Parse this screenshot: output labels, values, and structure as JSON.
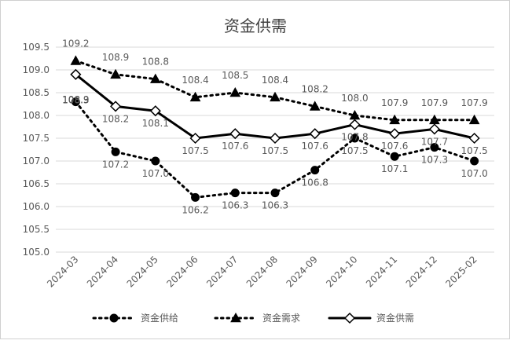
{
  "chart_data": {
    "type": "line",
    "title": "资金供需",
    "xlabel": "",
    "ylabel": "",
    "ylim": [
      105.0,
      109.5
    ],
    "y_ticks": [
      "105.0",
      "105.5",
      "106.0",
      "106.5",
      "107.0",
      "107.5",
      "108.0",
      "108.5",
      "109.0",
      "109.5"
    ],
    "grid": true,
    "legend_position": "bottom",
    "categories": [
      "2024-03",
      "2024-04",
      "2024-05",
      "2024-06",
      "2024-07",
      "2024-08",
      "2024-09",
      "2024-10",
      "2024-11",
      "2024-12",
      "2025-02"
    ],
    "series": [
      {
        "name": "资金供给",
        "values": [
          108.3,
          107.2,
          107.0,
          106.2,
          106.3,
          106.3,
          106.8,
          107.5,
          107.1,
          107.3,
          107.0
        ],
        "labels": [
          "108.3",
          "107.2",
          "107.0",
          "106.2",
          "106.3",
          "106.3",
          "106.8",
          "107.5",
          "107.1",
          "107.3",
          "107.0"
        ],
        "line_style": "dotted",
        "marker": "circle",
        "color": "#000000"
      },
      {
        "name": "资金需求",
        "values": [
          109.2,
          108.9,
          108.8,
          108.4,
          108.5,
          108.4,
          108.2,
          108.0,
          107.9,
          107.9,
          107.9
        ],
        "labels": [
          "109.2",
          "108.9",
          "108.8",
          "108.4",
          "108.5",
          "108.4",
          "108.2",
          "108.0",
          "107.9",
          "107.9",
          "107.9"
        ],
        "line_style": "dotted",
        "marker": "triangle",
        "color": "#000000"
      },
      {
        "name": "资金供需",
        "values": [
          108.9,
          108.2,
          108.1,
          107.5,
          107.6,
          107.5,
          107.6,
          107.8,
          107.6,
          107.7,
          107.5
        ],
        "labels": [
          "108.9",
          "108.2",
          "108.1",
          "107.5",
          "107.6",
          "107.5",
          "107.6",
          "107.8",
          "107.6",
          "107.7",
          "107.5"
        ],
        "line_style": "solid",
        "marker": "diamond",
        "color": "#000000"
      }
    ]
  }
}
